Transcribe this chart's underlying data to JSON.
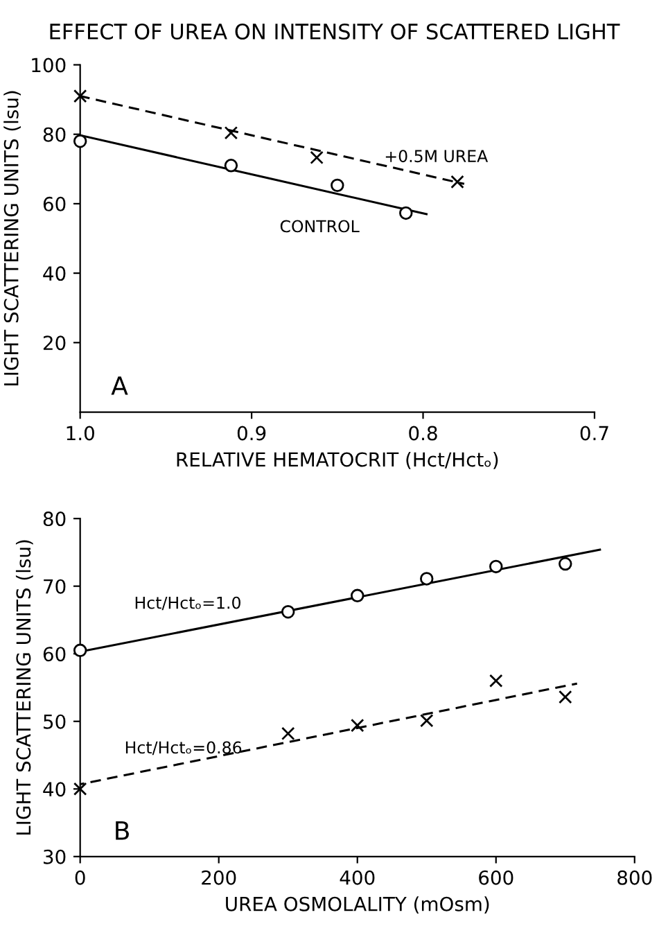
{
  "chart_data": [
    {
      "type": "scatter",
      "title": "EFFECT OF UREA ON INTENSITY OF SCATTERED LIGHT",
      "xlabel": "RELATIVE HEMATOCRIT (Hct/Hctₒ)",
      "ylabel": "LIGHT SCATTERING UNITS (lsu)",
      "xlim": [
        1.0,
        0.7
      ],
      "xticks": [
        {
          "value": 1.0,
          "label": "1.0"
        },
        0.9,
        0.8,
        0.7
      ],
      "ylim": [
        0,
        100
      ],
      "yticks": [
        20,
        40,
        60,
        80,
        100
      ],
      "grid": false,
      "annotations": [
        "A"
      ],
      "series": [
        {
          "name": "+0.5M UREA",
          "color": "#000000",
          "marker": "cross",
          "x": [
            1.0,
            0.912,
            0.862,
            0.78
          ],
          "values": [
            91,
            80.4,
            73.3,
            66.3
          ]
        },
        {
          "type": "line",
          "color": "#000000",
          "line_style": "dashed",
          "marker": "none",
          "x": [
            1.0,
            0.776
          ],
          "values": [
            91,
            65.7
          ]
        },
        {
          "name": "CONTROL",
          "color": "#000000",
          "marker": "circle",
          "x": [
            1.0,
            0.912,
            0.85,
            0.81
          ],
          "values": [
            78,
            71,
            65.3,
            57.3
          ]
        },
        {
          "type": "line",
          "color": "#000000",
          "line_style": "solid",
          "marker": "none",
          "x": [
            1.0,
            0.798
          ],
          "values": [
            79.7,
            57
          ]
        }
      ]
    },
    {
      "type": "scatter",
      "xlabel": "UREA OSMOLALITY (mOsm)",
      "ylabel": "LIGHT SCATTERING UNITS (lsu)",
      "xlim": [
        0,
        800
      ],
      "xticks": [
        0,
        200,
        400,
        600,
        800
      ],
      "ylim": [
        30,
        80
      ],
      "yticks": [
        30,
        40,
        50,
        60,
        70,
        80
      ],
      "grid": false,
      "annotations": [
        "B"
      ],
      "series": [
        {
          "name": "Hct/Hctₒ=1.0",
          "color": "#000000",
          "marker": "circle",
          "x": [
            0,
            300,
            400,
            500,
            600,
            700
          ],
          "values": [
            60.5,
            66.2,
            68.6,
            71.1,
            72.9,
            73.3
          ]
        },
        {
          "type": "line",
          "color": "#000000",
          "line_style": "solid",
          "marker": "none",
          "x": [
            0,
            750
          ],
          "values": [
            60.3,
            75.4
          ]
        },
        {
          "name": "Hct/Hctₒ=0.86",
          "color": "#000000",
          "marker": "cross",
          "x": [
            0,
            300,
            400,
            500,
            600,
            700
          ],
          "values": [
            40,
            48.2,
            49.4,
            50.1,
            56,
            53.6
          ]
        },
        {
          "type": "line",
          "color": "#000000",
          "line_style": "dashed",
          "marker": "none",
          "x": [
            0,
            717
          ],
          "values": [
            40.7,
            55.6
          ]
        }
      ]
    }
  ]
}
